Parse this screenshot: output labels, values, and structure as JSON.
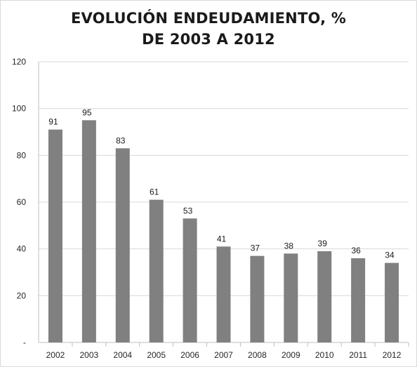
{
  "chart_data": {
    "type": "bar",
    "title": [
      "EVOLUCIÓN ENDEUDAMIENTO, %",
      "DE 2003 A 2012"
    ],
    "xlabel": "",
    "ylabel": "",
    "categories": [
      "2002",
      "2003",
      "2004",
      "2005",
      "2006",
      "2007",
      "2008",
      "2009",
      "2010",
      "2011",
      "2012"
    ],
    "values": [
      91,
      95,
      83,
      61,
      53,
      41,
      37,
      38,
      39,
      36,
      34
    ],
    "data_labels": [
      "91",
      "95",
      "83",
      "61",
      "53",
      "41",
      "37",
      "38",
      "39",
      "36",
      "34"
    ],
    "ylim": [
      0,
      120
    ],
    "yticks": [
      0,
      20,
      40,
      60,
      80,
      100,
      120
    ],
    "ytick_labels": [
      "-",
      "20",
      "40",
      "60",
      "80",
      "100",
      "120"
    ],
    "grid": true,
    "legend": "none",
    "bar_color": "#808080",
    "grid_color": "#d9d9d9"
  }
}
